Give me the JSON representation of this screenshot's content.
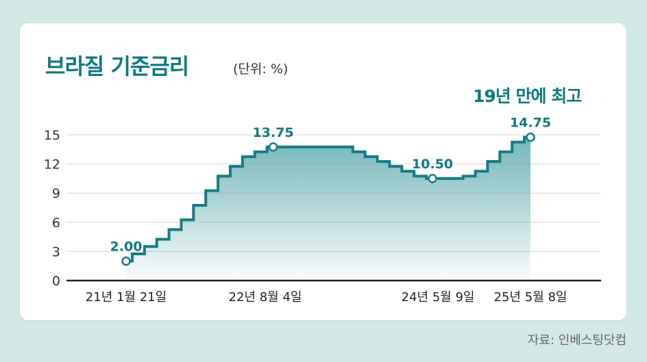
{
  "title": "브라질 기준금리",
  "unit": "(단위: %)",
  "highlight": "19년 만에 최고",
  "source": "자료: 인베스팅닷컴",
  "colors": {
    "accent": "#0e7a7f",
    "line": "#137d82",
    "background": "#d3e9e5",
    "card": "#ffffff"
  },
  "chart_data": {
    "type": "area",
    "title": "브라질 기준금리",
    "unit": "(단위: %)",
    "y_ticks": [
      0,
      3,
      6,
      9,
      12,
      15
    ],
    "ylim": [
      0,
      15
    ],
    "x_tick_labels": [
      "21년 1월 21일",
      "22년 8월 4일",
      "24년 5월 9일",
      "25년 5월 8일"
    ],
    "grid": true,
    "series": [
      {
        "values": [
          2.0,
          2.75,
          3.5,
          4.25,
          5.25,
          6.25,
          7.75,
          9.25,
          10.75,
          11.75,
          12.75,
          13.25,
          13.75,
          13.75,
          13.75,
          13.75,
          13.75,
          13.75,
          13.75,
          13.25,
          12.75,
          12.25,
          11.75,
          11.25,
          10.75,
          10.5,
          10.5,
          10.5,
          10.75,
          11.25,
          12.25,
          13.25,
          14.25,
          14.75
        ]
      }
    ],
    "annotations": [
      {
        "label": "2.00",
        "value": 2.0,
        "x_label": "21년 1월 21일"
      },
      {
        "label": "13.75",
        "value": 13.75,
        "x_label": "22년 8월 4일"
      },
      {
        "label": "10.50",
        "value": 10.5,
        "x_label": "24년 5월 9일"
      },
      {
        "label": "14.75",
        "value": 14.75,
        "x_label": "25년 5월 8일"
      }
    ]
  }
}
